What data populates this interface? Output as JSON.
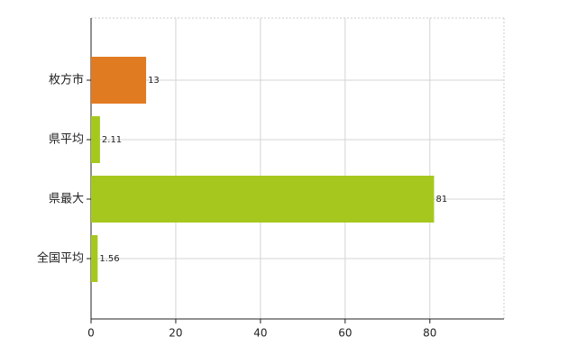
{
  "chart_data": {
    "type": "hbar",
    "categories": [
      "枚方市",
      "県平均",
      "県最大",
      "全国平均"
    ],
    "values": [
      13,
      2.11,
      81,
      1.56
    ],
    "colors": [
      "#e07b22",
      "#a6c81e",
      "#a6c81e",
      "#a6c81e"
    ],
    "xlim": [
      0,
      97.5
    ],
    "xticks": [
      0,
      20,
      40,
      60,
      80
    ],
    "grid": true
  }
}
